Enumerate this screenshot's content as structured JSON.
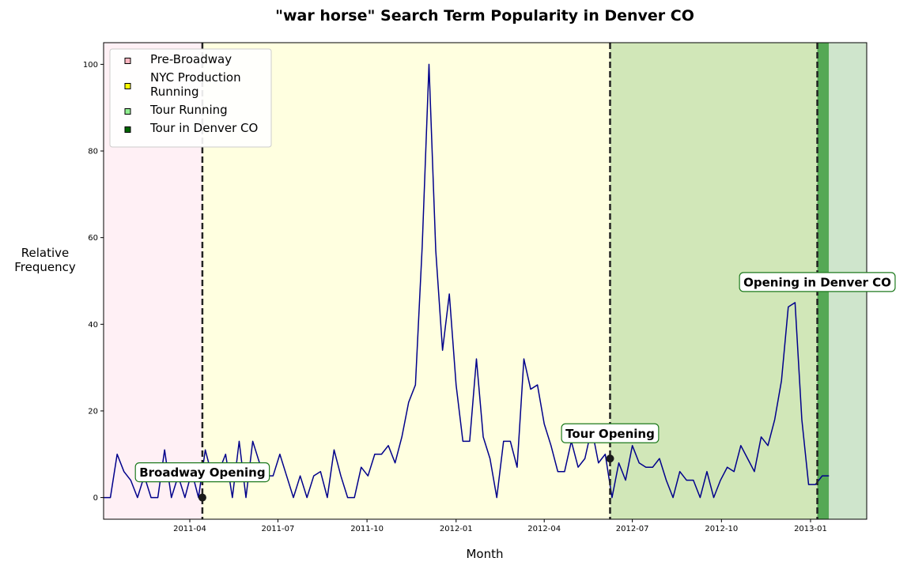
{
  "chart_data": {
    "type": "line",
    "title": "\"war horse\" Search Term Popularity in Denver CO",
    "xlabel": "Month",
    "ylabel": "Relative\nFrequency",
    "xlim": [
      "2011-01-02",
      "2013-02-28"
    ],
    "ylim": [
      -5,
      105
    ],
    "x_ticks": [
      "2011-04",
      "2011-07",
      "2011-10",
      "2012-01",
      "2012-04",
      "2012-07",
      "2012-10",
      "2013-01"
    ],
    "y_ticks": [
      0,
      20,
      40,
      60,
      80,
      100
    ],
    "grid": false,
    "legend_position": "top-left",
    "colors": {
      "line": "#00008b",
      "pre_broadway": "#fff0f5",
      "nyc_production": "#ffffe0",
      "tour_running": "#d1e7b8",
      "tour_in_denver": "#55a855",
      "after_tour": "#cfe5cc",
      "legend_pre_broadway": "#ffb6c1",
      "legend_nyc_production": "#ffff00",
      "legend_tour_running": "#90ee90",
      "legend_tour_in_denver": "#006400"
    },
    "regions": [
      {
        "name": "Pre-Broadway",
        "start": "2011-01-02",
        "end": "2011-04-14",
        "color_key": "pre_broadway",
        "legend": true
      },
      {
        "name": "NYC Production Running",
        "start": "2011-04-14",
        "end": "2012-06-08",
        "color_key": "nyc_production",
        "legend": true
      },
      {
        "name": "Tour Running",
        "start": "2012-06-08",
        "end": "2013-01-08",
        "color_key": "tour_running",
        "legend": true
      },
      {
        "name": "Tour in Denver CO",
        "start": "2013-01-08",
        "end": "2013-01-20",
        "color_key": "tour_in_denver",
        "legend": true
      },
      {
        "name": "",
        "start": "2013-01-20",
        "end": "2013-02-28",
        "color_key": "after_tour",
        "legend": false
      }
    ],
    "vlines": [
      "2011-04-14",
      "2012-06-08",
      "2013-01-08"
    ],
    "annotations": [
      {
        "text": "Broadway Opening",
        "date": "2011-04-14",
        "value": 0,
        "marker": true
      },
      {
        "text": "Tour Opening",
        "date": "2012-06-08",
        "value": 9,
        "marker": true
      },
      {
        "text": "Opening in Denver CO",
        "date": "2013-01-08",
        "value": 43,
        "marker": false
      }
    ],
    "series": [
      {
        "start": "2011-01-02",
        "interval_days": 7,
        "values": [
          0,
          0,
          10,
          6,
          4,
          0,
          5,
          0,
          0,
          11,
          0,
          5,
          0,
          6,
          0,
          11,
          5,
          6,
          10,
          0,
          13,
          0,
          13,
          8,
          5,
          5,
          10,
          5,
          0,
          5,
          0,
          5,
          6,
          0,
          11,
          5,
          0,
          0,
          7,
          5,
          10,
          10,
          12,
          8,
          14,
          22,
          26,
          58,
          100,
          57,
          34,
          47,
          26,
          13,
          13,
          32,
          14,
          9,
          0,
          13,
          13,
          7,
          32,
          25,
          26,
          17,
          12,
          6,
          6,
          13,
          7,
          9,
          16,
          8,
          10,
          0,
          8,
          4,
          12,
          8,
          7,
          7,
          9,
          4,
          0,
          6,
          4,
          4,
          0,
          6,
          0,
          4,
          7,
          6,
          12,
          9,
          6,
          14,
          12,
          18,
          27,
          44,
          45,
          18,
          3,
          3,
          5,
          5
        ]
      }
    ]
  }
}
